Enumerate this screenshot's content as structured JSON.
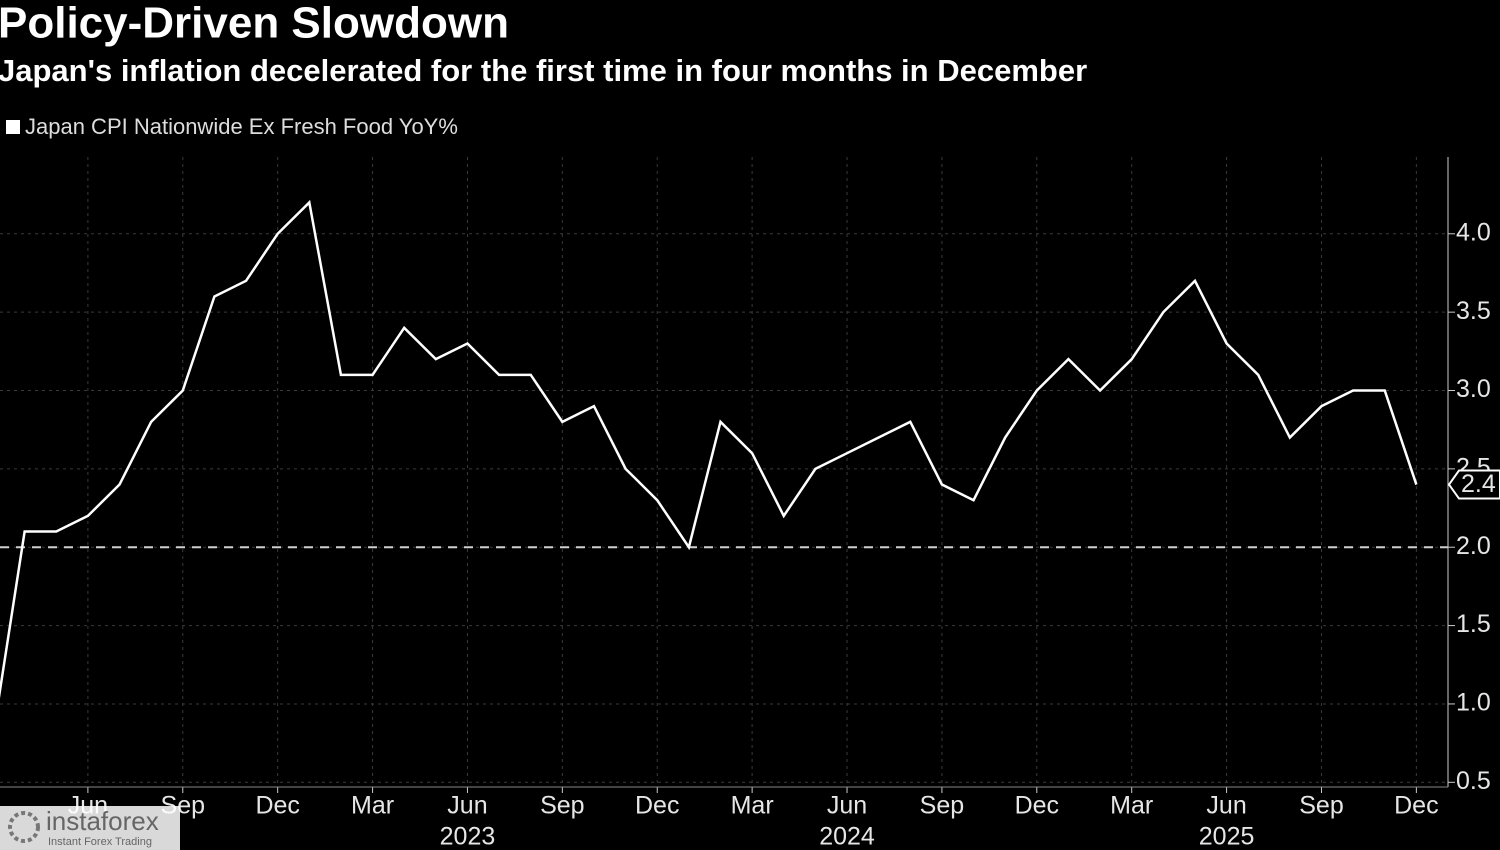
{
  "chart_data": {
    "type": "line",
    "title": "Policy-Driven Slowdown",
    "subtitle": "Japan's inflation decelerated for the first time in four months in December",
    "x": [
      "2022-03",
      "2022-04",
      "2022-05",
      "2022-06",
      "2022-07",
      "2022-08",
      "2022-09",
      "2022-10",
      "2022-11",
      "2022-12",
      "2023-01",
      "2023-02",
      "2023-03",
      "2023-04",
      "2023-05",
      "2023-06",
      "2023-07",
      "2023-08",
      "2023-09",
      "2023-10",
      "2023-11",
      "2023-12",
      "2024-01",
      "2024-02",
      "2024-03",
      "2024-04",
      "2024-05",
      "2024-06",
      "2024-07",
      "2024-08",
      "2024-09",
      "2024-10",
      "2024-11",
      "2024-12",
      "2025-01",
      "2025-02",
      "2025-03",
      "2025-04",
      "2025-05",
      "2025-06",
      "2025-07",
      "2025-08",
      "2025-09",
      "2025-10",
      "2025-11",
      "2025-12"
    ],
    "series": [
      {
        "name": "Japan CPI Nationwide Ex Fresh Food YoY%",
        "color": "#ffffff",
        "values": [
          0.8,
          2.1,
          2.1,
          2.2,
          2.4,
          2.8,
          3.0,
          3.6,
          3.7,
          4.0,
          4.2,
          3.1,
          3.1,
          3.4,
          3.2,
          3.3,
          3.1,
          3.1,
          2.8,
          2.9,
          2.5,
          2.3,
          2.0,
          2.8,
          2.6,
          2.2,
          2.5,
          2.6,
          2.7,
          2.8,
          2.4,
          2.3,
          2.7,
          3.0,
          3.2,
          3.0,
          3.2,
          3.5,
          3.7,
          3.3,
          3.1,
          2.7,
          2.9,
          3.0,
          3.0,
          2.4
        ]
      }
    ],
    "xlim": [
      "2022-03",
      "2026-01"
    ],
    "xticks": [
      {
        "value": "2022-06",
        "label": "Jun"
      },
      {
        "value": "2022-09",
        "label": "Sep"
      },
      {
        "value": "2022-12",
        "label": "Dec"
      },
      {
        "value": "2023-03",
        "label": "Mar"
      },
      {
        "value": "2023-06",
        "label": "Jun"
      },
      {
        "value": "2023-09",
        "label": "Sep"
      },
      {
        "value": "2023-12",
        "label": "Dec"
      },
      {
        "value": "2024-03",
        "label": "Mar"
      },
      {
        "value": "2024-06",
        "label": "Jun"
      },
      {
        "value": "2024-09",
        "label": "Sep"
      },
      {
        "value": "2024-12",
        "label": "Dec"
      },
      {
        "value": "2025-03",
        "label": "Mar"
      },
      {
        "value": "2025-06",
        "label": "Jun"
      },
      {
        "value": "2025-09",
        "label": "Sep"
      },
      {
        "value": "2025-12",
        "label": "Dec"
      }
    ],
    "year_labels": [
      {
        "value": "2023-06",
        "label": "2023"
      },
      {
        "value": "2024-06",
        "label": "2024"
      },
      {
        "value": "2025-06",
        "label": "2025"
      }
    ],
    "ylim": [
      0.47,
      4.49
    ],
    "yticks": [
      {
        "value": 0.5,
        "label": "0.5"
      },
      {
        "value": 1,
        "label": "1.0"
      },
      {
        "value": 1.5,
        "label": "1.5"
      },
      {
        "value": 2,
        "label": "2.0"
      },
      {
        "value": 2.5,
        "label": "2.5"
      },
      {
        "value": 3,
        "label": "3.0"
      },
      {
        "value": 3.5,
        "label": "3.5"
      },
      {
        "value": 4,
        "label": "4.0"
      }
    ],
    "reference_line": 2,
    "grid": true,
    "watermark": {
      "brand": "instaforex",
      "tagline": "Instant Forex Trading"
    }
  }
}
